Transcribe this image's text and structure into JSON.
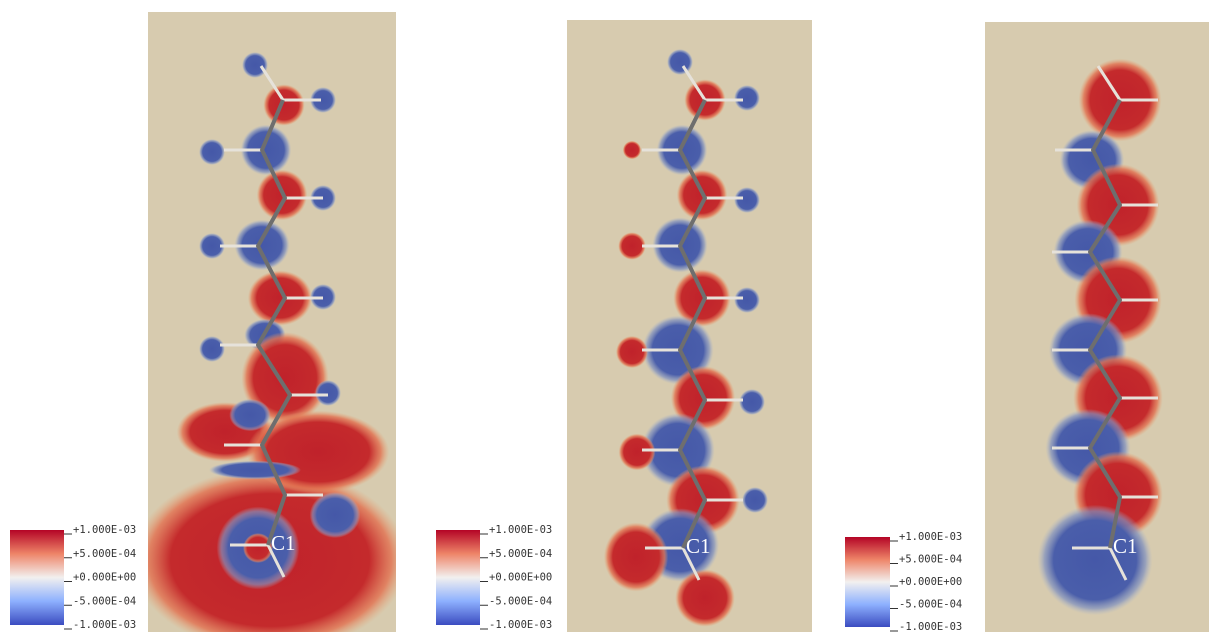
{
  "panels": [
    {
      "atom_label": "C1",
      "colorbar": {
        "ticks": [
          {
            "value": 0.001,
            "label": "+1.000E-03"
          },
          {
            "value": 0.0005,
            "label": "+5.000E-04"
          },
          {
            "value": 0,
            "label": "+0.000E+00"
          },
          {
            "value": -0.0005,
            "label": "-5.000E-04"
          },
          {
            "value": -0.001,
            "label": "-1.000E-03"
          }
        ]
      }
    },
    {
      "atom_label": "C1",
      "colorbar": {
        "ticks": [
          {
            "value": 0.001,
            "label": "+1.000E-03"
          },
          {
            "value": 0.0005,
            "label": "+5.000E-04"
          },
          {
            "value": 0,
            "label": "+0.000E+00"
          },
          {
            "value": -0.0005,
            "label": "-5.000E-04"
          },
          {
            "value": -0.001,
            "label": "-1.000E-03"
          }
        ]
      }
    },
    {
      "atom_label": "C1",
      "colorbar": {
        "ticks": [
          {
            "value": 0.001,
            "label": "+1.000E-03"
          },
          {
            "value": 0.0005,
            "label": "+5.000E-04"
          },
          {
            "value": 0,
            "label": "+0.000E+00"
          },
          {
            "value": -0.0005,
            "label": "-5.000E-04"
          },
          {
            "value": -0.001,
            "label": "-1.000E-03"
          }
        ]
      }
    }
  ]
}
